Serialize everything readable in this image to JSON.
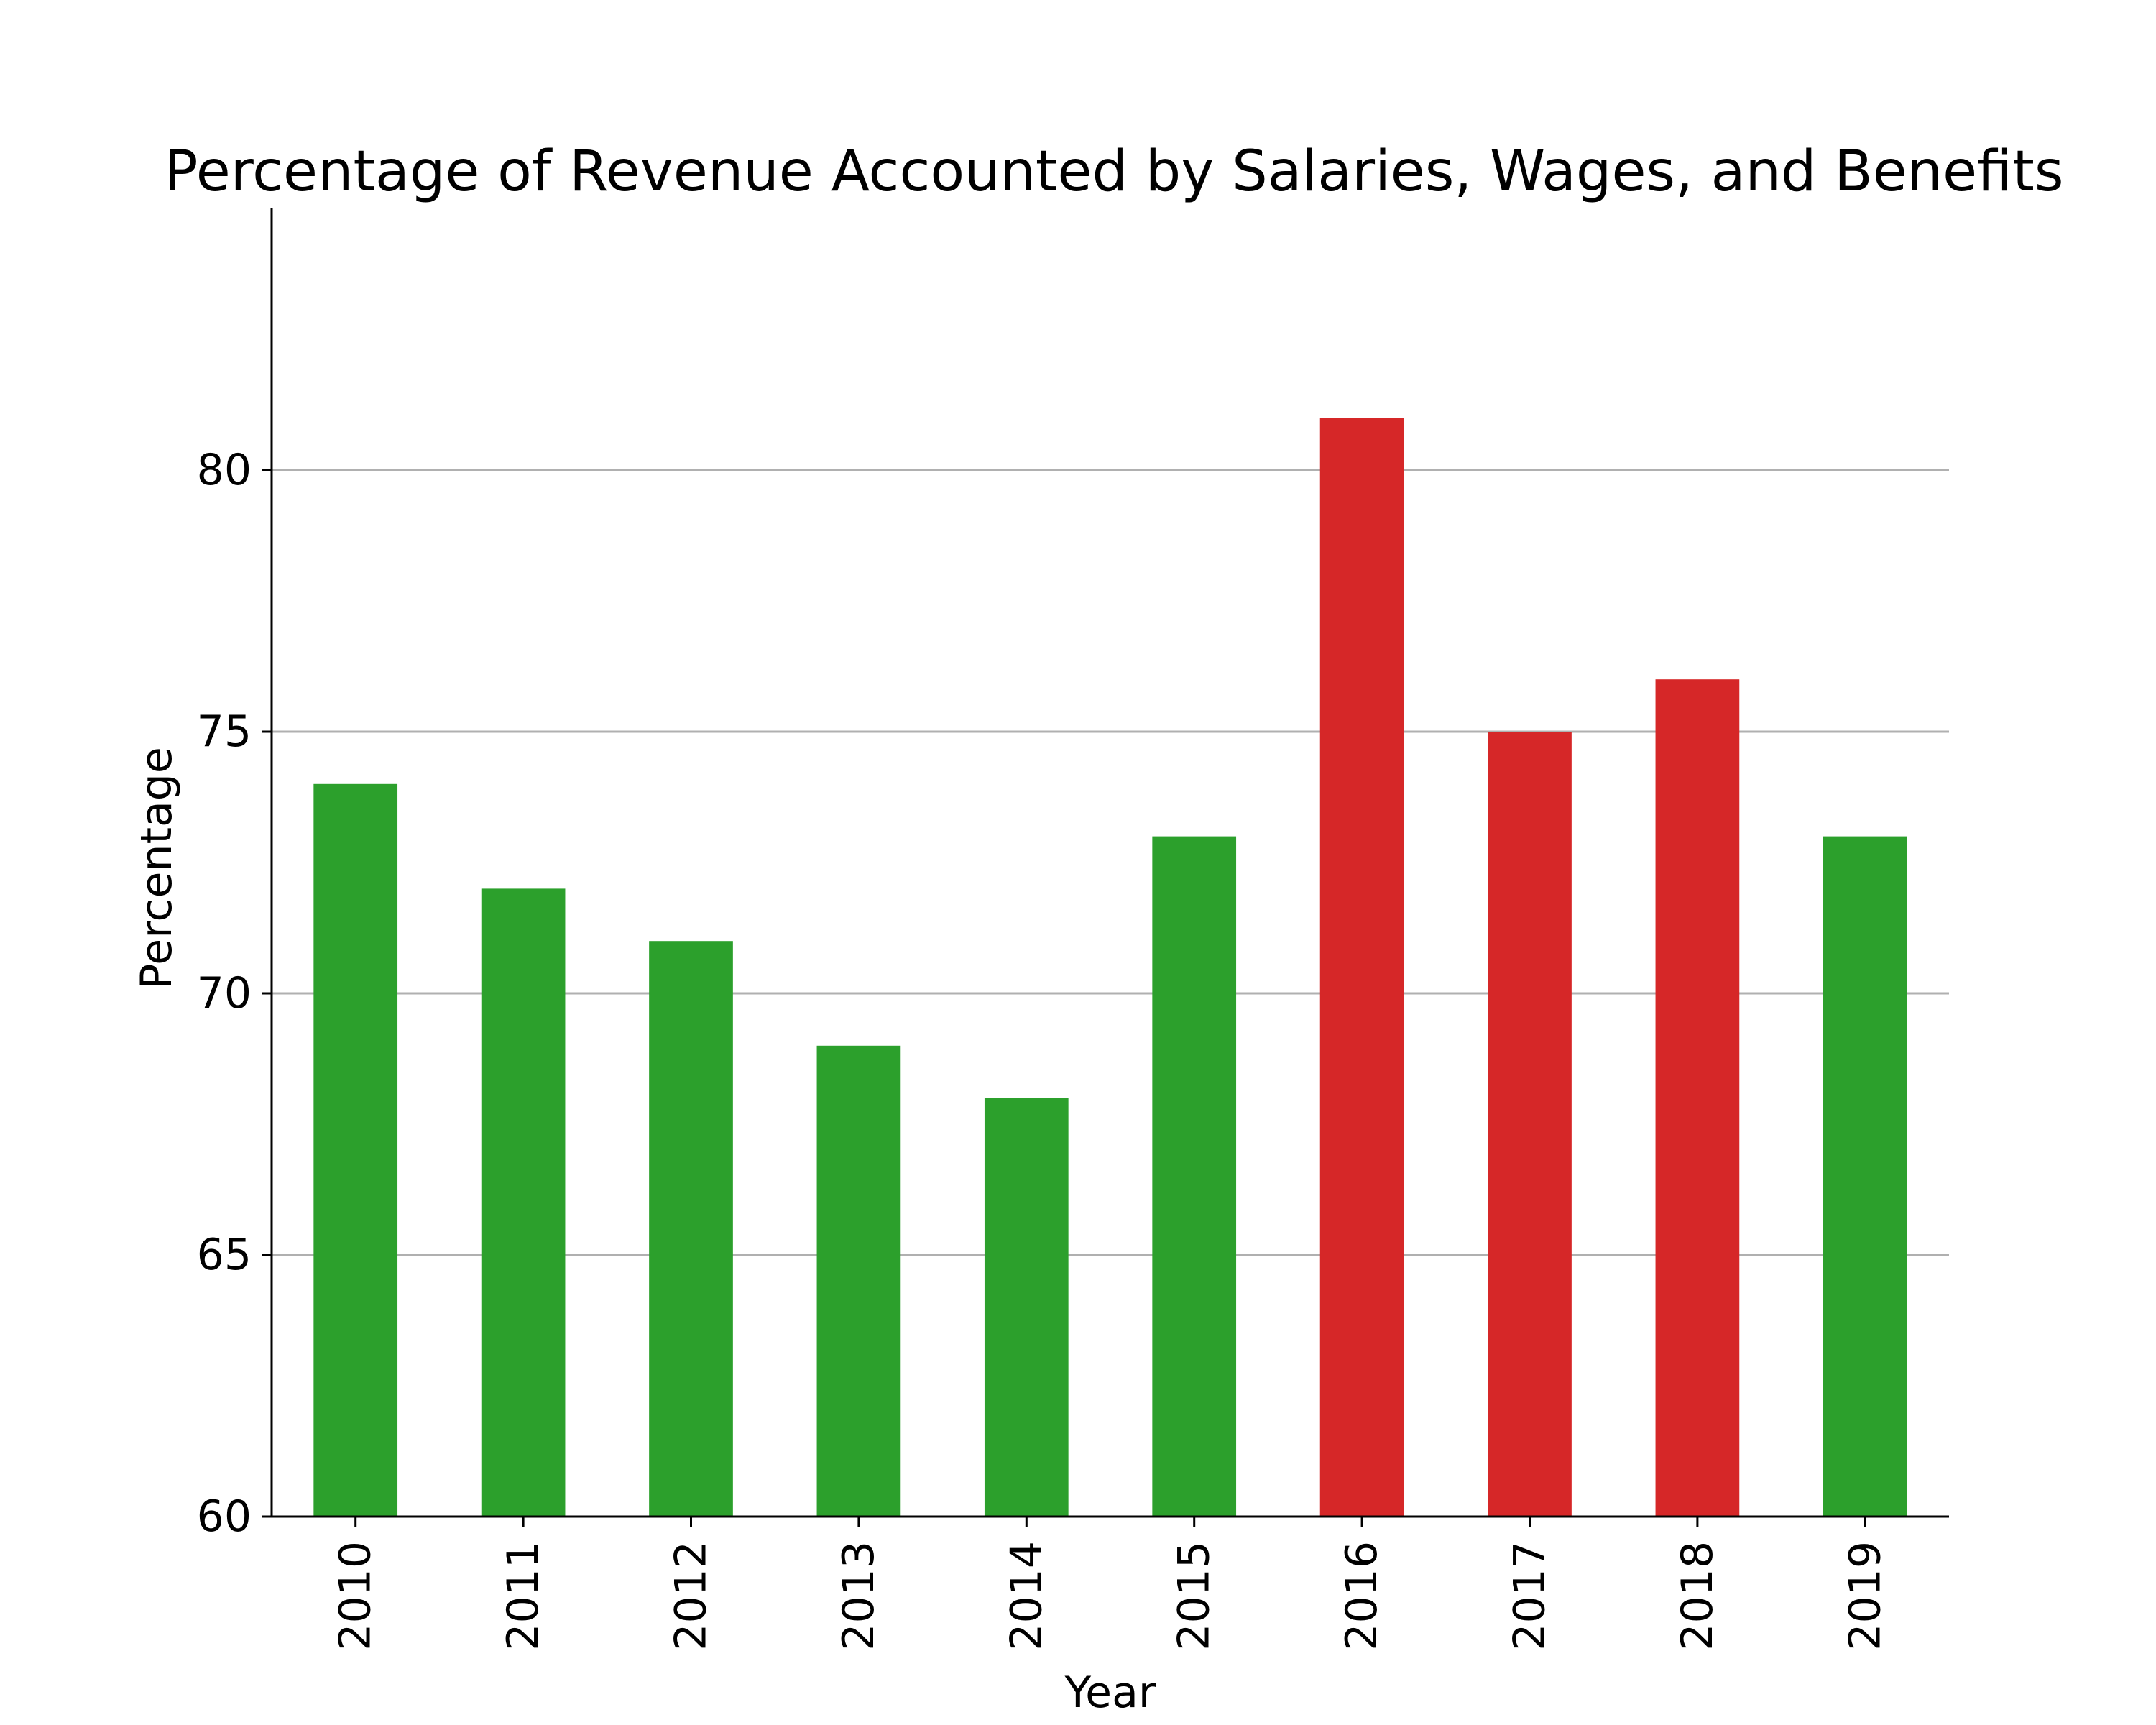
{
  "chart_data": {
    "type": "bar",
    "title": "Percentage of Revenue Accounted by Salaries, Wages, and Benefits",
    "xlabel": "Year",
    "ylabel": "Percentage",
    "categories": [
      "2010",
      "2011",
      "2012",
      "2013",
      "2014",
      "2015",
      "2016",
      "2017",
      "2018",
      "2019"
    ],
    "values": [
      74,
      72,
      71,
      69,
      68,
      73,
      81,
      75,
      76,
      73
    ],
    "bar_colors": [
      "#2ca02c",
      "#2ca02c",
      "#2ca02c",
      "#2ca02c",
      "#2ca02c",
      "#2ca02c",
      "#d62728",
      "#d62728",
      "#d62728",
      "#2ca02c"
    ],
    "ylim": [
      60,
      85
    ],
    "yticks": [
      60,
      65,
      70,
      75,
      80
    ],
    "grid": "horizontal",
    "legend": "none"
  }
}
